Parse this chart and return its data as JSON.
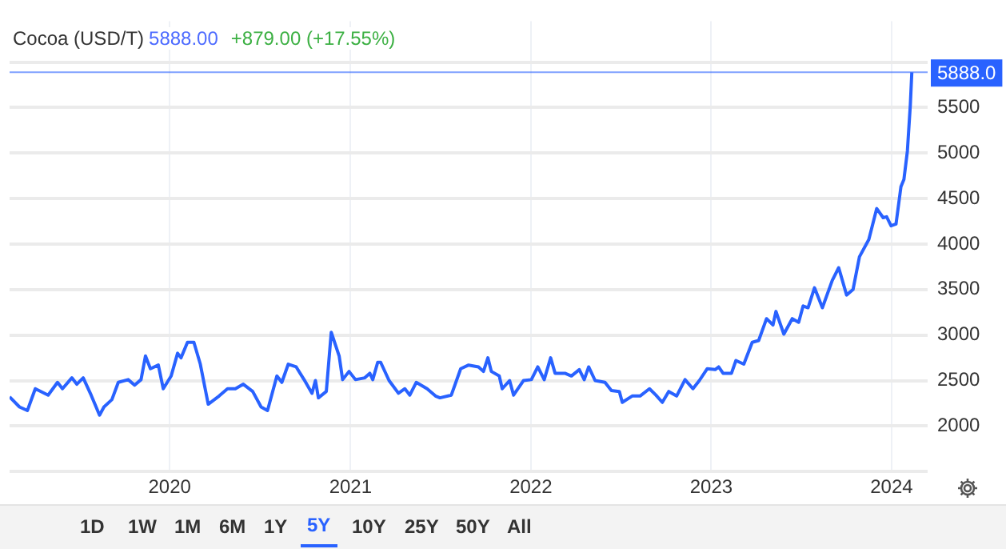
{
  "chart_data": {
    "type": "line",
    "title": "Cocoa (USD/T)",
    "subtitle": "5888.00",
    "annotations": [
      "+879.00 (+17.55%)",
      "1D",
      "1W",
      "1M",
      "6M",
      "1Y",
      "5Y",
      "10Y",
      "25Y",
      "50Y",
      "All"
    ],
    "x": [
      "2019-02-11",
      "2019-03-03",
      "2019-03-19",
      "2019-04-04",
      "2019-04-30",
      "2019-05-19",
      "2019-05-29",
      "2019-06-17",
      "2019-06-27",
      "2019-07-10",
      "2019-07-26",
      "2019-08-12",
      "2019-08-21",
      "2019-09-06",
      "2019-09-19",
      "2019-10-09",
      "2019-10-22",
      "2019-11-04",
      "2019-11-13",
      "2019-11-23",
      "2019-12-09",
      "2019-12-19",
      "2020-01-04",
      "2020-01-17",
      "2020-01-24",
      "2020-02-06",
      "2020-02-19",
      "2020-03-03",
      "2020-03-19",
      "2020-04-10",
      "2020-04-27",
      "2020-05-13",
      "2020-05-29",
      "2020-06-17",
      "2020-07-04",
      "2020-07-17",
      "2020-08-05",
      "2020-08-15",
      "2020-08-28",
      "2020-09-13",
      "2020-09-29",
      "2020-10-15",
      "2020-10-22",
      "2020-10-28",
      "2020-11-13",
      "2020-11-23",
      "2020-12-09",
      "2020-12-16",
      "2020-12-29",
      "2021-01-11",
      "2021-01-30",
      "2021-02-09",
      "2021-02-15",
      "2021-02-25",
      "2021-03-03",
      "2021-03-20",
      "2021-04-08",
      "2021-04-21",
      "2021-05-01",
      "2021-05-14",
      "2021-06-05",
      "2021-06-22",
      "2021-07-01",
      "2021-07-24",
      "2021-08-12",
      "2021-08-28",
      "2021-09-17",
      "2021-09-27",
      "2021-10-06",
      "2021-10-13",
      "2021-10-29",
      "2021-11-04",
      "2021-11-19",
      "2021-11-27",
      "2021-12-17",
      "2022-01-02",
      "2022-01-15",
      "2022-01-28",
      "2022-02-10",
      "2022-02-19",
      "2022-03-11",
      "2022-03-24",
      "2022-04-09",
      "2022-04-19",
      "2022-04-28",
      "2022-05-11",
      "2022-05-31",
      "2022-06-13",
      "2022-06-29",
      "2022-07-05",
      "2022-07-25",
      "2022-08-10",
      "2022-08-29",
      "2022-09-11",
      "2022-09-24",
      "2022-10-07",
      "2022-10-23",
      "2022-11-09",
      "2022-11-25",
      "2022-12-08",
      "2022-12-24",
      "2023-01-09",
      "2023-01-16",
      "2023-01-25",
      "2023-02-11",
      "2023-02-20",
      "2023-03-08",
      "2023-03-25",
      "2023-04-07",
      "2023-04-23",
      "2023-05-06",
      "2023-05-12",
      "2023-05-28",
      "2023-06-14",
      "2023-06-27",
      "2023-07-06",
      "2023-07-16",
      "2023-07-29",
      "2023-08-14",
      "2023-09-03",
      "2023-09-16",
      "2023-10-02",
      "2023-10-15",
      "2023-10-28",
      "2023-11-16",
      "2023-12-02",
      "2023-12-15",
      "2023-12-22",
      "2023-12-31",
      "2024-01-10",
      "2024-01-20",
      "2024-01-26",
      "2024-02-02",
      "2024-02-08",
      "2024-02-11"
    ],
    "series": [
      {
        "color": "#2962ff",
        "values": [
          2320,
          2210,
          2170,
          2410,
          2340,
          2480,
          2410,
          2530,
          2460,
          2530,
          2340,
          2120,
          2210,
          2290,
          2480,
          2510,
          2450,
          2510,
          2770,
          2630,
          2670,
          2410,
          2550,
          2800,
          2750,
          2920,
          2920,
          2680,
          2240,
          2330,
          2410,
          2410,
          2460,
          2380,
          2210,
          2170,
          2550,
          2480,
          2680,
          2650,
          2510,
          2360,
          2500,
          2310,
          2380,
          3030,
          2770,
          2510,
          2600,
          2510,
          2530,
          2580,
          2510,
          2700,
          2700,
          2500,
          2360,
          2410,
          2340,
          2480,
          2410,
          2330,
          2310,
          2340,
          2630,
          2670,
          2650,
          2600,
          2750,
          2600,
          2550,
          2410,
          2500,
          2340,
          2500,
          2510,
          2650,
          2510,
          2750,
          2580,
          2580,
          2550,
          2620,
          2510,
          2650,
          2500,
          2480,
          2390,
          2380,
          2260,
          2330,
          2330,
          2410,
          2340,
          2260,
          2380,
          2330,
          2510,
          2410,
          2500,
          2630,
          2620,
          2650,
          2580,
          2580,
          2720,
          2680,
          2920,
          2940,
          3180,
          3110,
          3260,
          3010,
          3180,
          3140,
          3320,
          3300,
          3520,
          3300,
          3600,
          3740,
          3440,
          3500,
          3860,
          4050,
          4390,
          4290,
          4300,
          4200,
          4220,
          4630,
          4710,
          5020,
          5530,
          5888
        ]
      }
    ],
    "xlim": [
      "2019-02-11",
      "2024-03-14"
    ],
    "xticks": [
      {
        "value": "2020",
        "label": "2020"
      },
      {
        "value": "2021",
        "label": "2021"
      },
      {
        "value": "2022",
        "label": "2022"
      },
      {
        "value": "2023",
        "label": "2023"
      },
      {
        "value": "2024",
        "label": "2024"
      }
    ],
    "ylim": [
      1500,
      6450
    ],
    "yticks": [
      {
        "value": 1500,
        "label": null
      },
      2000,
      2500,
      3000,
      3500,
      4000,
      4500,
      5000,
      5500,
      {
        "value": 6000,
        "label": null
      }
    ],
    "ref_lines": [
      {
        "axis": "y",
        "value": 5888,
        "label": "5888.0",
        "color": "#2962ff"
      }
    ],
    "grid": true,
    "legend": false,
    "marker": "none",
    "line_style": "solid"
  }
}
